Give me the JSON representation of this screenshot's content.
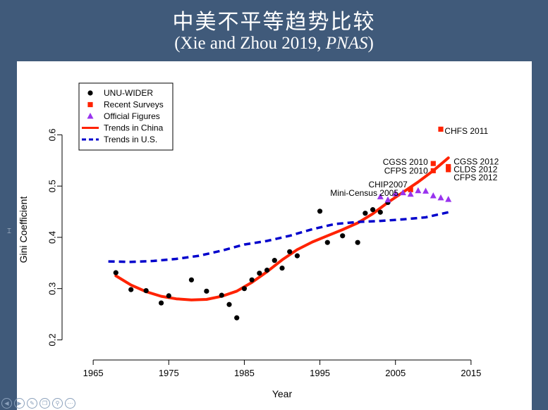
{
  "slide": {
    "title": "中美不平等趋势比较",
    "subtitle_plain": "(Xie and Zhou 2019, ",
    "subtitle_italic": "PNAS",
    "subtitle_end": ")"
  },
  "chart_data": {
    "type": "scatter",
    "xlabel": "Year",
    "ylabel": "Gini Coefficient",
    "xlim": [
      1962,
      2018
    ],
    "ylim": [
      0.18,
      0.65
    ],
    "xticks": [
      1965,
      1975,
      1985,
      1995,
      2005,
      2015
    ],
    "yticks": [
      0.2,
      0.3,
      0.4,
      0.5,
      0.6
    ],
    "grid": false,
    "legend_position": "top-left",
    "legend": [
      {
        "label": "UNU-WIDER",
        "symbol": "circle",
        "color": "#000000"
      },
      {
        "label": "Recent Surveys",
        "symbol": "square",
        "color": "#ff2200"
      },
      {
        "label": "Official Figures",
        "symbol": "triangle",
        "color": "#9933ee"
      },
      {
        "label": "Trends in China",
        "symbol": "solid-line",
        "color": "#ff2200"
      },
      {
        "label": "Trends in U.S.",
        "symbol": "dashed-line",
        "color": "#0000cc"
      }
    ],
    "series": [
      {
        "name": "UNU-WIDER",
        "kind": "points",
        "symbol": "circle",
        "color": "#000000",
        "points": [
          [
            1968,
            0.331
          ],
          [
            1970,
            0.298
          ],
          [
            1972,
            0.296
          ],
          [
            1974,
            0.272
          ],
          [
            1975,
            0.286
          ],
          [
            1978,
            0.317
          ],
          [
            1980,
            0.295
          ],
          [
            1982,
            0.287
          ],
          [
            1983,
            0.269
          ],
          [
            1984,
            0.243
          ],
          [
            1985,
            0.3
          ],
          [
            1986,
            0.317
          ],
          [
            1987,
            0.33
          ],
          [
            1988,
            0.336
          ],
          [
            1989,
            0.355
          ],
          [
            1990,
            0.34
          ],
          [
            1991,
            0.372
          ],
          [
            1992,
            0.364
          ],
          [
            1995,
            0.451
          ],
          [
            1996,
            0.39
          ],
          [
            1998,
            0.403
          ],
          [
            2000,
            0.39
          ],
          [
            2001,
            0.447
          ],
          [
            2002,
            0.454
          ],
          [
            2003,
            0.449
          ],
          [
            2004,
            0.468
          ]
        ]
      },
      {
        "name": "Recent Surveys",
        "kind": "points",
        "symbol": "square",
        "color": "#ff2200",
        "points": [
          [
            2007,
            0.493
          ],
          [
            2010,
            0.544
          ],
          [
            2010,
            0.53
          ],
          [
            2011,
            0.611
          ],
          [
            2012,
            0.538
          ],
          [
            2012,
            0.532
          ]
        ]
      },
      {
        "name": "Official Figures",
        "kind": "points",
        "symbol": "triangle",
        "color": "#9933ee",
        "points": [
          [
            2003,
            0.479
          ],
          [
            2004,
            0.473
          ],
          [
            2005,
            0.485
          ],
          [
            2006,
            0.487
          ],
          [
            2007,
            0.484
          ],
          [
            2008,
            0.491
          ],
          [
            2009,
            0.49
          ],
          [
            2010,
            0.481
          ],
          [
            2011,
            0.477
          ],
          [
            2012,
            0.474
          ]
        ]
      },
      {
        "name": "Trends in China",
        "kind": "line",
        "dash": false,
        "color": "#ff2200",
        "points": [
          [
            1968,
            0.325
          ],
          [
            1970,
            0.307
          ],
          [
            1972,
            0.294
          ],
          [
            1974,
            0.285
          ],
          [
            1976,
            0.28
          ],
          [
            1978,
            0.278
          ],
          [
            1980,
            0.279
          ],
          [
            1982,
            0.285
          ],
          [
            1984,
            0.295
          ],
          [
            1986,
            0.312
          ],
          [
            1988,
            0.333
          ],
          [
            1990,
            0.356
          ],
          [
            1992,
            0.376
          ],
          [
            1994,
            0.391
          ],
          [
            1996,
            0.403
          ],
          [
            1998,
            0.415
          ],
          [
            2000,
            0.428
          ],
          [
            2002,
            0.446
          ],
          [
            2004,
            0.468
          ],
          [
            2006,
            0.488
          ],
          [
            2008,
            0.508
          ],
          [
            2010,
            0.53
          ],
          [
            2012,
            0.555
          ]
        ]
      },
      {
        "name": "Trends in U.S.",
        "kind": "line",
        "dash": true,
        "color": "#0000cc",
        "points": [
          [
            1967,
            0.353
          ],
          [
            1970,
            0.352
          ],
          [
            1973,
            0.354
          ],
          [
            1976,
            0.358
          ],
          [
            1979,
            0.364
          ],
          [
            1982,
            0.374
          ],
          [
            1985,
            0.386
          ],
          [
            1988,
            0.393
          ],
          [
            1991,
            0.403
          ],
          [
            1994,
            0.416
          ],
          [
            1997,
            0.426
          ],
          [
            2000,
            0.43
          ],
          [
            2003,
            0.432
          ],
          [
            2006,
            0.435
          ],
          [
            2009,
            0.439
          ],
          [
            2012,
            0.449
          ]
        ]
      }
    ],
    "annotations": [
      {
        "text": "CHFS 2011",
        "x": 2011.5,
        "y": 0.608,
        "anchor": "start"
      },
      {
        "text": "CGSS 2010",
        "x": 2009.3,
        "y": 0.547,
        "anchor": "end"
      },
      {
        "text": "CGSS 2012",
        "x": 2012.7,
        "y": 0.548,
        "anchor": "start"
      },
      {
        "text": "CFPS 2010",
        "x": 2009.3,
        "y": 0.53,
        "anchor": "end"
      },
      {
        "text": "CLDS 2012",
        "x": 2012.7,
        "y": 0.533,
        "anchor": "start"
      },
      {
        "text": "CFPS 2012",
        "x": 2012.7,
        "y": 0.517,
        "anchor": "start"
      },
      {
        "text": "CHIP2007",
        "x": 2006.6,
        "y": 0.503,
        "anchor": "end"
      },
      {
        "text": "Mini-Census 2005",
        "x": 2005.4,
        "y": 0.487,
        "anchor": "end"
      }
    ]
  }
}
